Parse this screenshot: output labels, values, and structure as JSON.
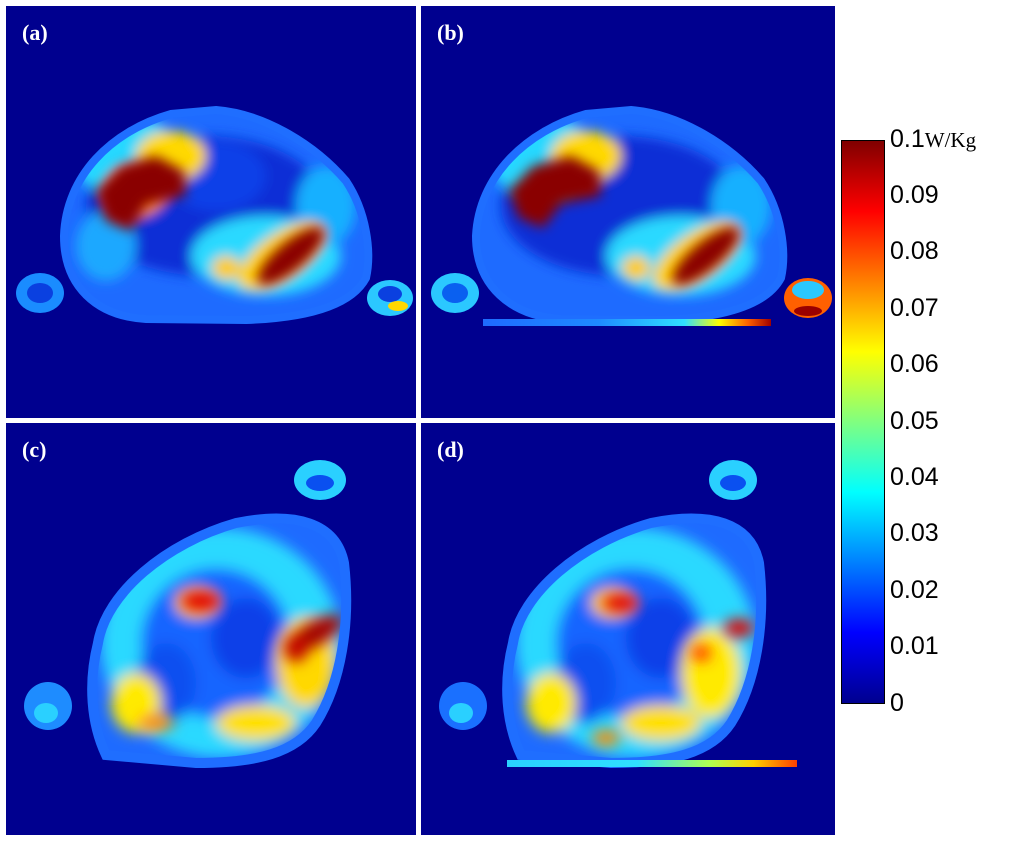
{
  "panels": [
    {
      "id": "a",
      "label": "(a)"
    },
    {
      "id": "b",
      "label": "(b)"
    },
    {
      "id": "c",
      "label": "(c)"
    },
    {
      "id": "d",
      "label": "(d)"
    }
  ],
  "colorbar": {
    "unit": "W/Kg",
    "min": 0,
    "max": 0.1,
    "tick_labels": [
      "0.1",
      "0.09",
      "0.08",
      "0.07",
      "0.06",
      "0.05",
      "0.04",
      "0.03",
      "0.02",
      "0.01",
      "0"
    ],
    "colormap": "jet"
  },
  "colors": {
    "background": "#00008f",
    "dark_red": "#800000",
    "red": "#ff0000",
    "yellow": "#ffff00",
    "cyan": "#00ffff",
    "blue": "#0000ff"
  }
}
